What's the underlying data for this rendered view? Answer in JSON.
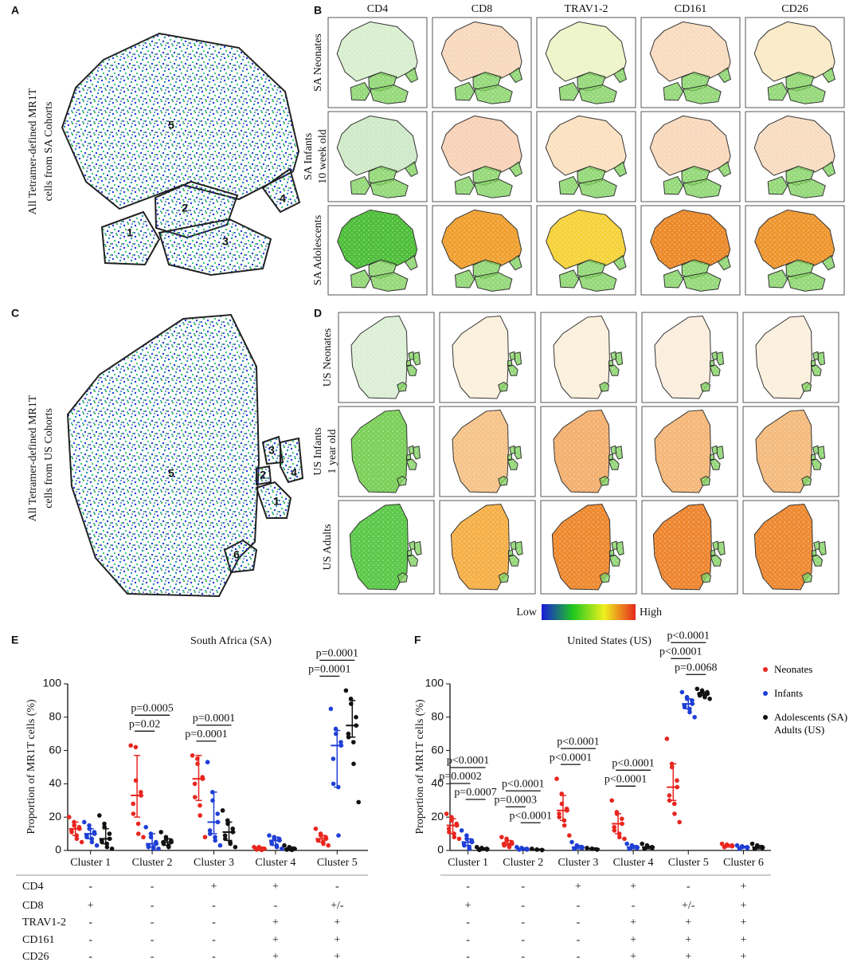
{
  "panel_labels": [
    "A",
    "B",
    "C",
    "D",
    "E",
    "F"
  ],
  "tsne": [
    {
      "ylabel": [
        "All Tetramer-defined MR1T",
        "cells from SA Cohorts"
      ],
      "clusters": [
        "5",
        "1",
        "2",
        "3",
        "4"
      ]
    },
    {
      "ylabel": [
        "All Tetramer-defined MR1T",
        "cells from US Cohorts"
      ],
      "clusters": [
        "5",
        "3",
        "4",
        "2",
        "1",
        "6"
      ]
    }
  ],
  "heatmaps": {
    "markers": [
      "CD4",
      "CD8",
      "TRAV1-2",
      "CD161",
      "CD26"
    ],
    "sa": [
      {
        "label": [
          "SA Neonates"
        ],
        "colors": [
          "#d9efcf",
          "#f8d9bd",
          "#eef4c8",
          "#f9dcc0",
          "#faeac6"
        ]
      },
      {
        "label": [
          "SA Infants",
          "10 week old"
        ],
        "colors": [
          "#cfeac8",
          "#f8d2b8",
          "#fbe1c0",
          "#f9d8bc",
          "#f8dcc1"
        ]
      },
      {
        "label": [
          "SA Adolescents"
        ],
        "colors": [
          "#4fbf3a",
          "#f0a030",
          "#f6d23a",
          "#ec8a2a",
          "#ee962e"
        ]
      }
    ],
    "us": [
      {
        "label": [
          "US Neonates"
        ],
        "colors": [
          "#dcefd6",
          "#faf0dc",
          "#fbf0dc",
          "#fbeede",
          "#fbf0de"
        ]
      },
      {
        "label": [
          "US Infants",
          "1 year old"
        ],
        "colors": [
          "#7cd05a",
          "#f6c48a",
          "#f4b070",
          "#f5b87a",
          "#f4bb7e"
        ]
      },
      {
        "label": [
          "US Adults"
        ],
        "colors": [
          "#5cc94a",
          "#f6b048",
          "#ee8a30",
          "#ee8630",
          "#ee8a32"
        ]
      }
    ]
  },
  "colorbar": {
    "low": "Low",
    "high": "High",
    "colors": [
      "#1a1adc",
      "#1ec81e",
      "#f0f01e",
      "#e6281e"
    ]
  },
  "chart_data": [
    {
      "type": "dot",
      "title": "South Africa (SA)",
      "ylabel": "Proportion of MR1T cells (%)",
      "categories": [
        "Cluster 1",
        "Cluster 2",
        "Cluster 3",
        "Cluster 4",
        "Cluster 5"
      ],
      "ylim": [
        0,
        100
      ],
      "yticks": [
        0,
        20,
        40,
        60,
        80,
        100
      ],
      "series": [
        {
          "color": "#e8261f",
          "values": [
            13,
            33,
            43,
            1,
            7
          ],
          "q1": [
            9,
            20,
            30,
            0.5,
            5
          ],
          "q3": [
            17,
            57,
            57,
            2,
            9
          ],
          "points": [
            [
              20,
              17,
              15,
              14,
              13,
              12,
              11,
              9,
              7,
              5
            ],
            [
              63,
              62,
              42,
              35,
              33,
              28,
              22,
              16,
              10,
              8
            ],
            [
              57,
              55,
              52,
              44,
              43,
              40,
              32,
              27,
              21,
              8
            ],
            [
              2,
              2,
              1.5,
              1,
              1,
              1,
              0.5,
              0.5,
              0.3
            ],
            [
              13,
              10,
              9,
              8,
              7,
              6,
              6,
              5,
              4,
              3
            ]
          ]
        },
        {
          "color": "#1f3fd6",
          "values": [
            10,
            4,
            17,
            6,
            63
          ],
          "q1": [
            7,
            2,
            10,
            3,
            38
          ],
          "q3": [
            13,
            10,
            35,
            8,
            72
          ],
          "points": [
            [
              17,
              15,
              13,
              11,
              10,
              9,
              8,
              7,
              5,
              3
            ],
            [
              14,
              10,
              8,
              5,
              4,
              3,
              2,
              2,
              1,
              1
            ],
            [
              53,
              35,
              30,
              22,
              17,
              12,
              10,
              8,
              6,
              3
            ],
            [
              9,
              8,
              7,
              7,
              6,
              5,
              4,
              3,
              2,
              1
            ],
            [
              85,
              73,
              70,
              65,
              63,
              55,
              40,
              38,
              9
            ]
          ]
        },
        {
          "color": "#111111",
          "values": [
            7,
            5,
            11,
            1,
            75
          ],
          "q1": [
            4,
            3,
            6,
            0,
            68
          ],
          "q3": [
            13,
            7,
            17,
            2,
            90
          ],
          "points": [
            [
              21,
              16,
              14,
              10,
              7,
              6,
              5,
              4,
              2,
              1
            ],
            [
              11,
              8,
              7,
              6,
              5,
              5,
              4,
              3,
              2
            ],
            [
              24,
              18,
              16,
              13,
              11,
              9,
              7,
              5,
              4,
              2
            ],
            [
              3,
              2,
              1,
              1,
              1,
              0.5,
              0.5,
              0.3
            ],
            [
              96,
              91,
              88,
              80,
              75,
              70,
              68,
              65,
              52,
              29
            ]
          ]
        }
      ],
      "brackets": [
        {
          "category": 1,
          "from": 0,
          "to": 1,
          "label": "p=0.02"
        },
        {
          "category": 1,
          "from": 0,
          "to": 2,
          "label": "p=0.0005"
        },
        {
          "category": 2,
          "from": 0,
          "to": 1,
          "label": "p=0.0001"
        },
        {
          "category": 2,
          "from": 0,
          "to": 2,
          "label": "p=0.0001"
        },
        {
          "category": 4,
          "from": 0,
          "to": 1,
          "label": "p=0.0001"
        },
        {
          "category": 4,
          "from": 0,
          "to": 2,
          "label": "p=0.0001"
        }
      ],
      "marker_rows": [
        "CD4",
        "CD8",
        "TRAV1-2",
        "CD161",
        "CD26"
      ],
      "markers": [
        [
          "-",
          "-",
          "+",
          "+",
          "-"
        ],
        [
          "+",
          "-",
          "-",
          "-",
          "+/-"
        ],
        [
          "-",
          "-",
          "-",
          "+",
          "+"
        ],
        [
          "-",
          "-",
          "-",
          "+",
          "+"
        ],
        [
          "-",
          "-",
          "-",
          "+",
          "+"
        ]
      ]
    },
    {
      "type": "dot",
      "title": "United States (US)",
      "ylabel": "Proportion of MR1T cells (%)",
      "categories": [
        "Cluster 1",
        "Cluster 2",
        "Cluster 3",
        "Cluster 4",
        "Cluster 5",
        "Cluster 6"
      ],
      "ylim": [
        0,
        100
      ],
      "yticks": [
        0,
        20,
        40,
        60,
        80,
        100
      ],
      "series": [
        {
          "name": "Neonates",
          "color": "#e8261f",
          "values": [
            15,
            4,
            24,
            16,
            38,
            3
          ],
          "q1": [
            10,
            3,
            18,
            10,
            30,
            2
          ],
          "q3": [
            19,
            6,
            33,
            22,
            52,
            3.5
          ],
          "points": [
            [
              22,
              20,
              18,
              16,
              15,
              13,
              11,
              10,
              8,
              7
            ],
            [
              8,
              7,
              6,
              5,
              4,
              4,
              3,
              3,
              2
            ],
            [
              43,
              34,
              28,
              25,
              24,
              22,
              20,
              18,
              15,
              9
            ],
            [
              30,
              23,
              22,
              19,
              16,
              14,
              12,
              10,
              8,
              7
            ],
            [
              67,
              52,
              50,
              42,
              38,
              33,
              30,
              28,
              22,
              17
            ],
            [
              4,
              3.5,
              3,
              3,
              2.5,
              2,
              2
            ]
          ]
        },
        {
          "name": "Infants",
          "color": "#1f3fd6",
          "values": [
            5,
            1,
            2,
            2,
            88,
            2
          ],
          "q1": [
            3,
            0.5,
            1,
            1,
            85,
            1.5
          ],
          "q3": [
            7,
            1.5,
            3,
            3,
            91,
            2.5
          ],
          "points": [
            [
              12,
              9,
              7,
              6,
              5,
              4,
              3,
              2,
              1
            ],
            [
              2,
              1.5,
              1,
              1,
              0.5,
              0.5
            ],
            [
              5,
              3,
              2.5,
              2,
              1.5,
              1,
              1
            ],
            [
              4,
              3,
              2,
              2,
              1.5,
              1,
              1
            ],
            [
              95,
              92,
              91,
              90,
              88,
              87,
              86,
              85,
              83,
              80
            ],
            [
              3,
              2.5,
              2,
              2,
              1.5,
              1
            ]
          ]
        },
        {
          "name": "Adolescents (SA) Adults (US)",
          "color": "#111111",
          "values": [
            1,
            0.5,
            1,
            2,
            94,
            2
          ],
          "q1": [
            0.5,
            0.3,
            0.5,
            1,
            93,
            1
          ],
          "q3": [
            1.5,
            0.8,
            1.5,
            2.5,
            95,
            3
          ],
          "points": [
            [
              2,
              1.5,
              1,
              1,
              0.5,
              0.5,
              0.3
            ],
            [
              1,
              0.5,
              0.5,
              0.3,
              0.2
            ],
            [
              1.5,
              1,
              1,
              0.5,
              0.5
            ],
            [
              4,
              3,
              2,
              2,
              1.5,
              1,
              1
            ],
            [
              97,
              96,
              95,
              95,
              94,
              94,
              93,
              93,
              92,
              91
            ],
            [
              4,
              3,
              2.5,
              2,
              1.5,
              1,
              1
            ]
          ]
        }
      ],
      "brackets": [
        {
          "category": 0,
          "from": 1,
          "to": 2,
          "label": "p=0.0007"
        },
        {
          "category": 0,
          "from": 0,
          "to": 1,
          "label": "p=0.0002"
        },
        {
          "category": 0,
          "from": 0,
          "to": 2,
          "label": "p<0.0001"
        },
        {
          "category": 1,
          "from": 1,
          "to": 2,
          "label": "p<0.0001"
        },
        {
          "category": 1,
          "from": 0,
          "to": 1,
          "label": "p=0.0003"
        },
        {
          "category": 1,
          "from": 0,
          "to": 2,
          "label": "p<0.0001"
        },
        {
          "category": 2,
          "from": 0,
          "to": 1,
          "label": "p<0.0001"
        },
        {
          "category": 2,
          "from": 0,
          "to": 2,
          "label": "p<0.0001"
        },
        {
          "category": 3,
          "from": 0,
          "to": 1,
          "label": "p<0.0001"
        },
        {
          "category": 3,
          "from": 0,
          "to": 2,
          "label": "p<0.0001"
        },
        {
          "category": 4,
          "from": 1,
          "to": 2,
          "label": "p=0.0068"
        },
        {
          "category": 4,
          "from": 0,
          "to": 1,
          "label": "p<0.0001"
        },
        {
          "category": 4,
          "from": 0,
          "to": 2,
          "label": "p<0.0001"
        }
      ],
      "markers": [
        [
          "-",
          "-",
          "+",
          "+",
          "-",
          "+"
        ],
        [
          "+",
          "-",
          "-",
          "-",
          "+/-",
          "+"
        ],
        [
          "-",
          "-",
          "-",
          "+",
          "+",
          "+"
        ],
        [
          "-",
          "-",
          "-",
          "+",
          "+",
          "+"
        ],
        [
          "-",
          "-",
          "-",
          "+",
          "+",
          "+"
        ]
      ]
    }
  ]
}
